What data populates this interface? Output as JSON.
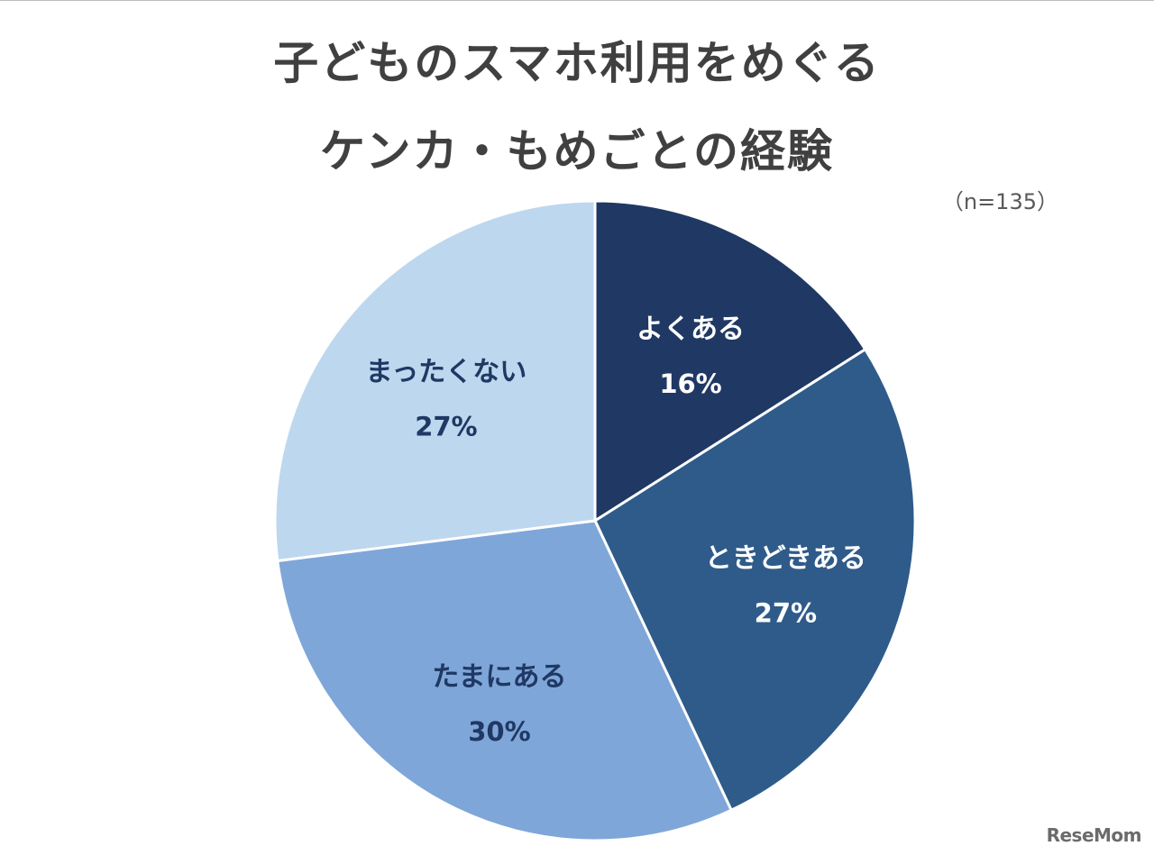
{
  "chart_data": {
    "type": "pie",
    "title_lines": [
      "子どものスマホ利用をめぐる",
      "ケンカ・もめごとの経験"
    ],
    "note": "（n=135）",
    "start_angle_deg": 0,
    "direction": "clockwise",
    "slices": [
      {
        "label": "よくある",
        "value": 16,
        "display": "16%",
        "color": "#203864",
        "text_color": "#ffffff"
      },
      {
        "label": "ときどきある",
        "value": 27,
        "display": "27%",
        "color": "#2e5b8a",
        "text_color": "#ffffff"
      },
      {
        "label": "たまにある",
        "value": 30,
        "display": "30%",
        "color": "#7fa6d8",
        "text_color": "#1f3864"
      },
      {
        "label": "まったくない",
        "value": 27,
        "display": "27%",
        "color": "#bdd7ee",
        "text_color": "#1f3864"
      }
    ]
  },
  "watermark": "ReseMom"
}
